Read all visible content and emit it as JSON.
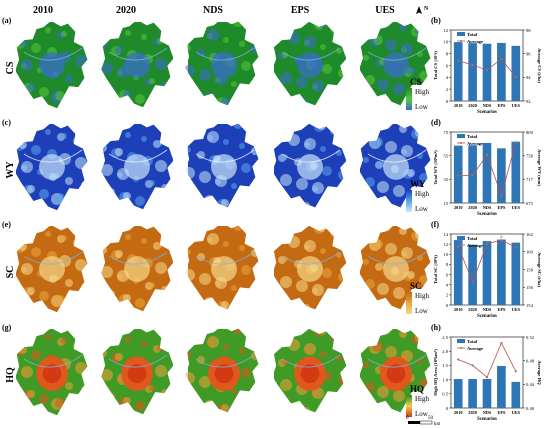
{
  "columns": [
    "2010",
    "2020",
    "NDS",
    "EPS",
    "UES"
  ],
  "rows": [
    {
      "tag": "(a)",
      "name": "CS",
      "legend_title": "CS",
      "legend_high": "High",
      "legend_low": "Low",
      "colors": [
        "#1f8a2a",
        "#55c837",
        "#3a6bd6"
      ]
    },
    {
      "tag": "(c)",
      "name": "WY",
      "legend_title": "WY",
      "legend_high": "High",
      "legend_low": "Low",
      "colors": [
        "#1d3fb8",
        "#5aa6ee",
        "#c9e6fa"
      ]
    },
    {
      "tag": "(e)",
      "name": "SC",
      "legend_title": "SC",
      "legend_high": "High",
      "legend_low": "Low",
      "colors": [
        "#c46a12",
        "#e9a53a",
        "#f7d88a"
      ]
    },
    {
      "tag": "(g)",
      "name": "HQ",
      "legend_title": "HQ",
      "legend_high": "High",
      "legend_low": "Low",
      "colors": [
        "#3f9a26",
        "#e0581c",
        "#f2a13a"
      ]
    }
  ],
  "north": "N",
  "scalebar": {
    "start": "0",
    "end": "50",
    "unit": "km"
  },
  "chart_data": [
    {
      "type": "bar",
      "tag": "(b)",
      "categories": [
        "2010",
        "2020",
        "NDS",
        "EPS",
        "UES"
      ],
      "series": [
        {
          "name": "Total",
          "values": [
            9.95,
            9.78,
            9.68,
            9.82,
            9.32
          ]
        },
        {
          "name": "Average",
          "values": [
            95.4,
            95.05,
            94.6,
            95.55,
            94.0
          ]
        }
      ],
      "ylabel": "Total CS (10⁷t)",
      "y2label": "Average CS (t/ha)",
      "xlabel": "Scenarios",
      "ylim": [
        0,
        12
      ],
      "yticks": [
        "0",
        "2",
        "4",
        "6",
        "8",
        "10",
        "12"
      ],
      "y2lim": [
        92,
        98
      ],
      "y2ticks": [
        "92",
        "94",
        "96",
        "98"
      ],
      "marked": [
        false,
        false,
        false,
        true,
        false
      ]
    },
    {
      "type": "bar",
      "tag": "(d)",
      "categories": [
        "2010",
        "2020",
        "NDS",
        "EPS",
        "UES"
      ],
      "series": [
        {
          "name": "Total",
          "values": [
            63.5,
            63.8,
            65.7,
            61.2,
            66.8
          ]
        },
        {
          "name": "Average",
          "values": [
            723,
            723.5,
            760,
            688,
            782
          ]
        }
      ],
      "ylabel": "Total WY (10⁸m³)",
      "y2label": "Average WY (mm)",
      "xlabel": "Scenarios",
      "ylim": [
        15,
        75
      ],
      "yticks": [
        "15",
        "35",
        "55",
        "75"
      ],
      "y2lim": [
        675,
        800
      ],
      "y2ticks": [
        "675",
        "717",
        "758",
        "800"
      ],
      "marked": [
        false,
        false,
        false,
        false,
        false
      ]
    },
    {
      "type": "bar",
      "tag": "(f)",
      "categories": [
        "2010",
        "2020",
        "NDS",
        "EPS",
        "UES"
      ],
      "series": [
        {
          "name": "Total",
          "values": [
            12.8,
            11.9,
            12.6,
            12.9,
            12.3
          ]
        },
        {
          "name": "Average",
          "values": [
            160.6,
            156.6,
            160.9,
            161.3,
            160.5
          ]
        }
      ],
      "ylabel": "Total SC (10⁹t)",
      "y2label": "Average SC (t/ha)",
      "xlabel": "Scenarios",
      "ylim": [
        0,
        14
      ],
      "yticks": [
        "0",
        "2",
        "4",
        "6",
        "8",
        "10",
        "12",
        "14"
      ],
      "y2lim": [
        154,
        162
      ],
      "y2ticks": [
        "154",
        "156",
        "158",
        "160",
        "162"
      ],
      "marked": [
        false,
        false,
        false,
        true,
        false
      ]
    },
    {
      "type": "bar",
      "tag": "(h)",
      "categories": [
        "2010",
        "2020",
        "NDS",
        "EPS",
        "UES"
      ],
      "series": [
        {
          "name": "Total",
          "values": [
            1.02,
            1.02,
            1.02,
            1.48,
            0.92
          ]
        },
        {
          "name": "Average",
          "values": [
            0.482,
            0.472,
            0.452,
            0.51,
            0.462
          ]
        }
      ],
      "ylabel": "High HQ Area (10³km²)",
      "y2label": "Average HQ",
      "xlabel": "Scenarios",
      "ylim": [
        0,
        2.5
      ],
      "yticks": [
        "0",
        "0.5",
        "1.0",
        "1.5",
        "2.0",
        "2.5"
      ],
      "y2lim": [
        0.4,
        0.52
      ],
      "y2ticks": [
        "0.40",
        "0.44",
        "0.48",
        "0.52"
      ],
      "marked": [
        false,
        false,
        false,
        false,
        false
      ]
    }
  ]
}
